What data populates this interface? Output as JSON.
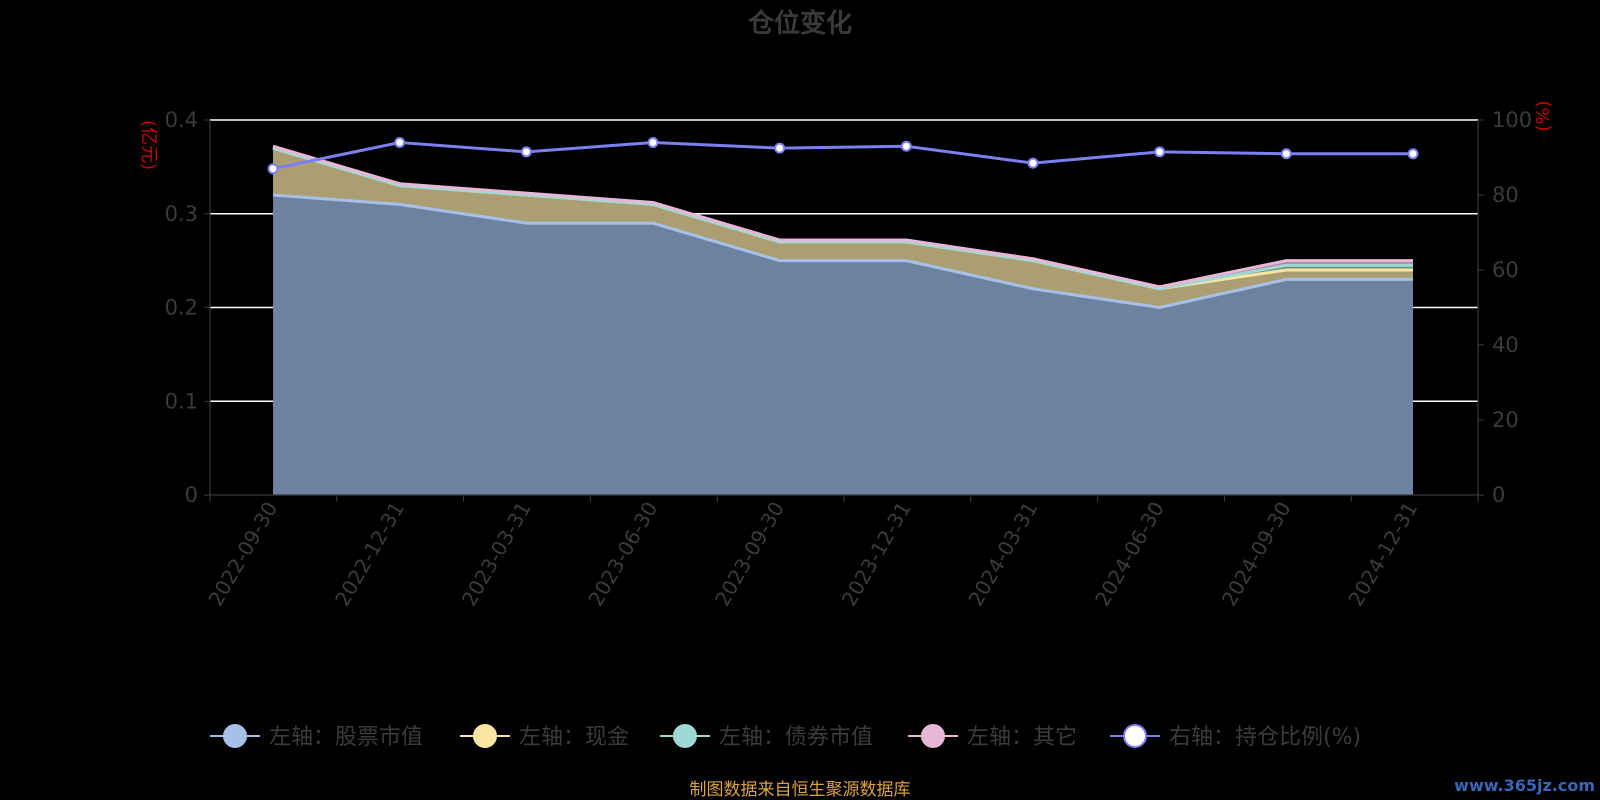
{
  "chart_data": {
    "type": "area",
    "title": "仓位变化",
    "left_axis_unit": "(亿元)",
    "right_axis_unit": "(%)",
    "categories": [
      "2022-09-30",
      "2022-12-31",
      "2023-03-31",
      "2023-06-30",
      "2023-09-30",
      "2023-12-31",
      "2024-03-31",
      "2024-06-30",
      "2024-09-30",
      "2024-12-31"
    ],
    "left_ylim": [
      0,
      0.4
    ],
    "left_yticks": [
      "0",
      "0.1",
      "0.2",
      "0.3",
      "0.4"
    ],
    "right_ylim": [
      0,
      100
    ],
    "right_yticks": [
      "0",
      "20",
      "40",
      "60",
      "80",
      "100"
    ],
    "stacked": true,
    "series": [
      {
        "name": "左轴：股票市值",
        "axis": "left",
        "color": "#a5c1e8",
        "values": [
          0.32,
          0.31,
          0.29,
          0.29,
          0.25,
          0.25,
          0.22,
          0.2,
          0.23,
          0.23
        ]
      },
      {
        "name": "左轴：现金",
        "axis": "left",
        "color": "#fbe5a3",
        "values": [
          0.05,
          0.02,
          0.03,
          0.02,
          0.02,
          0.02,
          0.03,
          0.02,
          0.01,
          0.01
        ]
      },
      {
        "name": "左轴：债券市值",
        "axis": "left",
        "color": "#9fd9d4",
        "values": [
          0.0,
          0.0,
          0.0,
          0.0,
          0.0,
          0.0,
          0.0,
          0.0,
          0.005,
          0.005
        ]
      },
      {
        "name": "左轴：其它",
        "axis": "left",
        "color": "#e8b6d6",
        "values": [
          0.002,
          0.002,
          0.002,
          0.002,
          0.002,
          0.002,
          0.002,
          0.002,
          0.005,
          0.005
        ]
      },
      {
        "name": "右轴：持仓比例(%)",
        "axis": "right",
        "color": "#7b7ff0",
        "values": [
          87,
          94,
          91.5,
          94,
          92.5,
          93,
          88.5,
          91.5,
          91,
          91
        ]
      }
    ],
    "area_fill": {
      "stock": "#6d82a0",
      "cash": "#ab9e72",
      "bond": "#6f8f8a",
      "other": "#a88aa0"
    },
    "grid": true,
    "legend_position": "bottom"
  },
  "source": "制图数据来自恒生聚源数据库",
  "watermark": "www.365jz.com"
}
